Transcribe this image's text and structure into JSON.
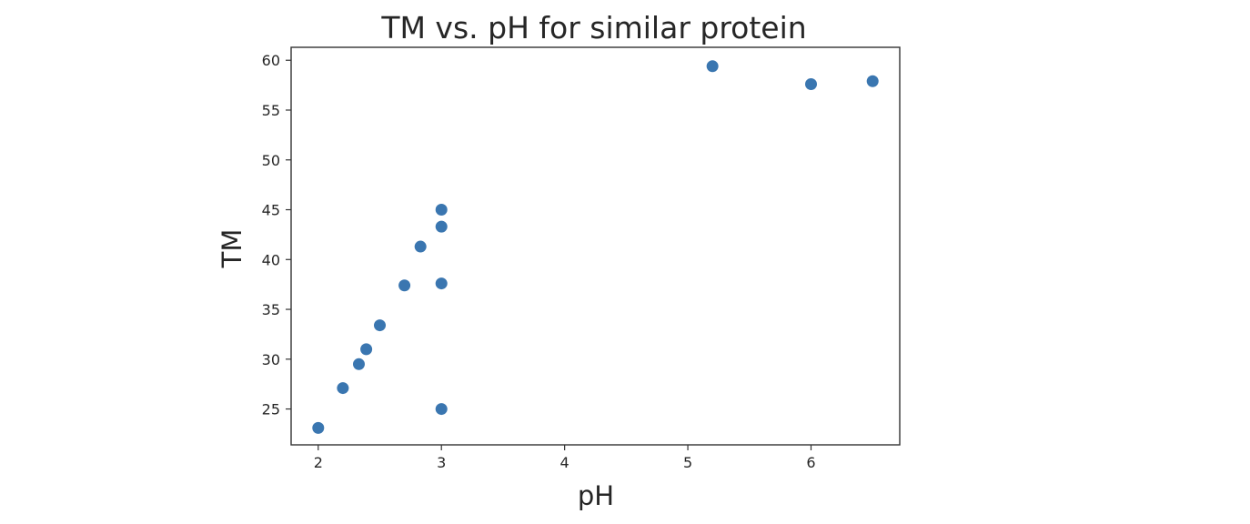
{
  "chart_data": {
    "type": "scatter",
    "title": "TM vs. pH for similar protein",
    "xlabel": "pH",
    "ylabel": "TM",
    "xlim": [
      1.78,
      6.72
    ],
    "ylim": [
      21.4,
      61.3
    ],
    "xticks": [
      2,
      3,
      4,
      5,
      6
    ],
    "yticks": [
      25,
      30,
      35,
      40,
      45,
      50,
      55,
      60
    ],
    "grid": false,
    "point_color": "#3a76b0",
    "series": [
      {
        "x": [
          2.0,
          2.2,
          2.33,
          2.39,
          2.5,
          2.7,
          2.83,
          3.0,
          3.0,
          3.0,
          3.0,
          5.2,
          6.0,
          6.5
        ],
        "y": [
          23.1,
          27.1,
          29.5,
          31.0,
          33.4,
          37.4,
          41.3,
          25.0,
          37.6,
          43.3,
          45.0,
          59.4,
          57.6,
          57.9
        ]
      }
    ]
  }
}
